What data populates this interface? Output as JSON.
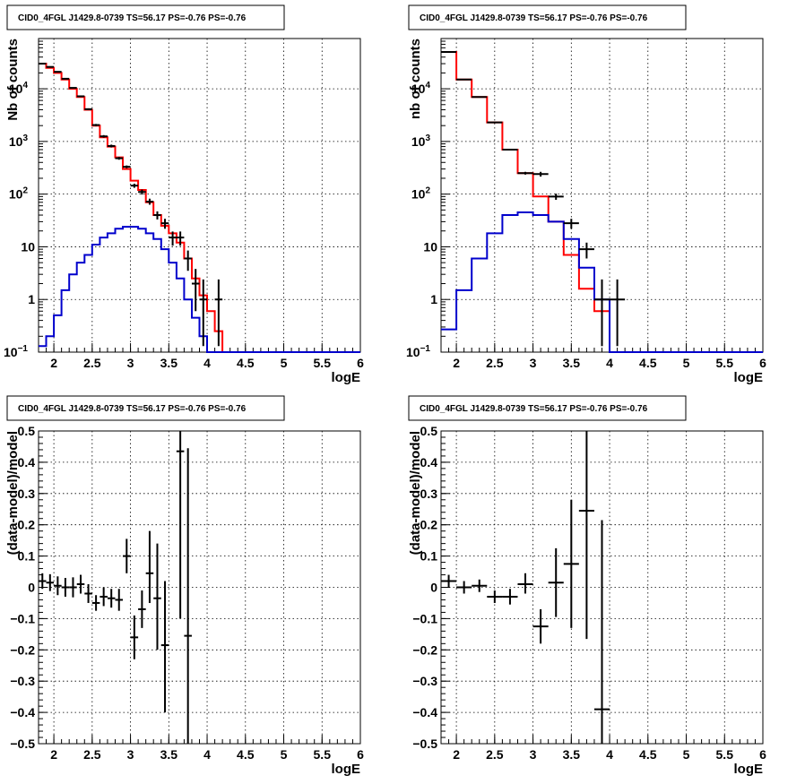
{
  "panel_title": "CID0_4FGL J1429.8-0739 TS=56.17 PS=-0.76 PS=-0.76",
  "chart_data": [
    {
      "type": "line",
      "panel": "top-left",
      "title": "CID0_4FGL J1429.8-0739 TS=56.17 PS=-0.76 PS=-0.76",
      "xlabel": "logE",
      "ylabel": "Nb of counts",
      "xlim": [
        1.8,
        6.0
      ],
      "ylim": [
        0.1,
        90000
      ],
      "yscale": "log",
      "grid": true,
      "x_ticks": [
        "2",
        "2.5",
        "3",
        "3.5",
        "4",
        "4.5",
        "5",
        "5.5",
        "6"
      ],
      "y_ticks": [
        "10^-1",
        "1",
        "10",
        "10^2",
        "10^3",
        "10^4"
      ],
      "series": [
        {
          "color": "#ff0000",
          "kind": "step",
          "bin_edges": [
            1.8,
            1.9,
            2.0,
            2.1,
            2.2,
            2.3,
            2.4,
            2.5,
            2.6,
            2.7,
            2.8,
            2.9,
            3.0,
            3.1,
            3.2,
            3.3,
            3.4,
            3.5,
            3.6,
            3.7,
            3.8,
            3.9,
            4.0,
            4.1,
            4.2,
            4.3,
            4.4,
            4.5,
            4.6,
            4.7,
            4.8,
            4.9,
            5.0,
            5.1,
            5.2,
            5.3,
            5.4,
            5.5,
            5.6,
            5.7,
            5.8,
            5.9,
            6.0
          ],
          "values": [
            30000,
            25000,
            20000,
            15000,
            10000,
            7000,
            4000,
            2000,
            1200,
            800,
            500,
            300,
            180,
            120,
            70,
            40,
            25,
            18,
            12,
            6,
            2.5,
            1.2,
            0.6,
            0.25,
            0.1,
            0.1,
            0.1,
            0.1,
            0.1,
            0.1,
            0.1,
            0.1,
            0.1,
            0.1,
            0.1,
            0.1,
            0.1,
            0.1,
            0.1,
            0.1,
            0.1,
            0.1
          ]
        },
        {
          "color": "#0000cc",
          "kind": "step",
          "bin_edges": [
            1.8,
            1.9,
            2.0,
            2.1,
            2.2,
            2.3,
            2.4,
            2.5,
            2.6,
            2.7,
            2.8,
            2.9,
            3.0,
            3.1,
            3.2,
            3.3,
            3.4,
            3.5,
            3.6,
            3.7,
            3.8,
            3.9,
            4.0,
            4.1,
            4.2,
            4.3,
            4.4,
            4.5,
            4.6,
            4.7,
            4.8,
            4.9,
            5.0,
            5.1,
            5.2,
            5.3,
            5.4,
            5.5,
            5.6,
            5.7,
            5.8,
            5.9,
            6.0
          ],
          "values": [
            0.13,
            0.2,
            0.5,
            1.5,
            3,
            5,
            7,
            11,
            15,
            18,
            22,
            24,
            24,
            22,
            18,
            14,
            9,
            5,
            2.5,
            1,
            0.45,
            0.2,
            0.1,
            0.1,
            0.1,
            0.1,
            0.1,
            0.1,
            0.1,
            0.1,
            0.1,
            0.1,
            0.1,
            0.1,
            0.1,
            0.1,
            0.1,
            0.1,
            0.1,
            0.1,
            0.1,
            0.1
          ]
        },
        {
          "color": "#000000",
          "kind": "points",
          "x": [
            1.85,
            1.95,
            2.05,
            2.15,
            2.25,
            2.35,
            2.45,
            2.55,
            2.65,
            2.75,
            2.85,
            2.95,
            3.05,
            3.15,
            3.25,
            3.35,
            3.45,
            3.55,
            3.65,
            3.75,
            3.85,
            3.95,
            4.15
          ],
          "y": [
            30000,
            26000,
            21000,
            15500,
            10400,
            7200,
            4100,
            2050,
            1250,
            820,
            480,
            330,
            145,
            110,
            72,
            40,
            28,
            15,
            15,
            6,
            2,
            1,
            1
          ],
          "xerr": 0.05,
          "ylow": [
            29800,
            25800,
            20800,
            15300,
            10200,
            7000,
            3950,
            1950,
            1180,
            770,
            450,
            310,
            132,
            98,
            63,
            33,
            22,
            10.5,
            10.5,
            3.5,
            0.6,
            0.13,
            0.13
          ],
          "yhigh": [
            30200,
            26200,
            21200,
            15700,
            10600,
            7400,
            4250,
            2150,
            1320,
            870,
            510,
            350,
            158,
            122,
            82,
            47,
            34,
            19.5,
            19.5,
            8.5,
            3.8,
            2.4,
            2.4
          ]
        }
      ]
    },
    {
      "type": "line",
      "panel": "top-right",
      "title": "CID0_4FGL J1429.8-0739 TS=56.17 PS=-0.76 PS=-0.76",
      "xlabel": "logE",
      "ylabel": "nb of counts",
      "xlim": [
        1.8,
        6.0
      ],
      "ylim": [
        0.1,
        90000
      ],
      "yscale": "log",
      "grid": true,
      "x_ticks": [
        "2",
        "2.5",
        "3",
        "3.5",
        "4",
        "4.5",
        "5",
        "5.5",
        "6"
      ],
      "y_ticks": [
        "10^-1",
        "1",
        "10",
        "10^2",
        "10^3",
        "10^4"
      ],
      "series": [
        {
          "color": "#ff0000",
          "kind": "step",
          "bin_edges": [
            1.8,
            2.0,
            2.2,
            2.4,
            2.6,
            2.8,
            3.0,
            3.2,
            3.4,
            3.6,
            3.8,
            4.0,
            4.2,
            4.4,
            4.6,
            4.8,
            5.0,
            5.2,
            5.4,
            5.6,
            5.8,
            6.0
          ],
          "values": [
            50000,
            15000,
            7000,
            2300,
            700,
            250,
            90,
            30,
            7,
            1.6,
            0.6,
            0.1,
            0.1,
            0.1,
            0.1,
            0.1,
            0.1,
            0.1,
            0.1,
            0.1,
            0.1
          ],
          "color_tail": "#0000cc"
        },
        {
          "color": "#0000cc",
          "kind": "step",
          "bin_edges": [
            1.8,
            2.0,
            2.2,
            2.4,
            2.6,
            2.8,
            3.0,
            3.2,
            3.4,
            3.6,
            3.8,
            4.0,
            4.2,
            4.4,
            4.6,
            4.8,
            5.0,
            5.2,
            5.4,
            5.6,
            5.8,
            6.0
          ],
          "values": [
            0.27,
            1.5,
            6,
            18,
            40,
            45,
            40,
            30,
            14,
            4,
            1,
            0.1,
            0.1,
            0.1,
            0.1,
            0.1,
            0.1,
            0.1,
            0.1,
            0.1,
            0.1
          ]
        },
        {
          "color": "#000000",
          "kind": "points",
          "x": [
            1.9,
            2.1,
            2.3,
            2.5,
            2.7,
            2.9,
            3.1,
            3.3,
            3.5,
            3.7,
            3.9,
            4.1
          ],
          "y": [
            50000,
            15000,
            7000,
            2300,
            700,
            250,
            240,
            90,
            28,
            9,
            1,
            1
          ],
          "xerr": 0.1,
          "ylow": [
            49800,
            14900,
            6950,
            2250,
            680,
            235,
            215,
            78,
            22,
            6,
            0.13,
            0.13
          ],
          "yhigh": [
            50200,
            15100,
            7050,
            2350,
            720,
            265,
            265,
            102,
            34,
            12,
            2.4,
            2.4
          ]
        }
      ]
    },
    {
      "type": "scatter",
      "panel": "bottom-left",
      "title": "CID0_4FGL J1429.8-0739 TS=56.17 PS=-0.76 PS=-0.76",
      "xlabel": "logE",
      "ylabel": "(data-model)/model",
      "xlim": [
        1.8,
        6.0
      ],
      "ylim": [
        -0.5,
        0.5
      ],
      "yscale": "linear",
      "grid": true,
      "x_ticks": [
        "2",
        "2.5",
        "3",
        "3.5",
        "4",
        "4.5",
        "5",
        "5.5",
        "6"
      ],
      "y_ticks": [
        "-0.5",
        "-0.4",
        "-0.3",
        "-0.2",
        "-0.1",
        "0",
        "0.1",
        "0.2",
        "0.3",
        "0.4",
        "0.5"
      ],
      "series": [
        {
          "color": "#000000",
          "kind": "points",
          "x": [
            1.85,
            1.95,
            2.05,
            2.15,
            2.25,
            2.35,
            2.45,
            2.55,
            2.65,
            2.75,
            2.85,
            2.95,
            3.05,
            3.15,
            3.25,
            3.35,
            3.45,
            3.65,
            3.75
          ],
          "y": [
            0.02,
            0.015,
            0.005,
            0.0,
            0.0,
            0.01,
            -0.02,
            -0.05,
            -0.03,
            -0.035,
            -0.04,
            0.1,
            -0.16,
            -0.07,
            0.045,
            -0.035,
            -0.185,
            0.435,
            -0.155
          ],
          "xerr": 0.05,
          "ylow": [
            -0.005,
            -0.012,
            -0.025,
            -0.03,
            -0.032,
            -0.02,
            -0.05,
            -0.075,
            -0.06,
            -0.065,
            -0.075,
            0.045,
            -0.23,
            -0.13,
            -0.05,
            -0.2,
            -0.4,
            -0.1,
            -0.5
          ],
          "yhigh": [
            0.045,
            0.042,
            0.035,
            0.03,
            0.032,
            0.04,
            0.01,
            -0.025,
            0.0,
            -0.005,
            -0.005,
            0.155,
            -0.09,
            -0.01,
            0.18,
            0.14,
            0.02,
            0.5,
            0.445
          ]
        }
      ]
    },
    {
      "type": "scatter",
      "panel": "bottom-right",
      "title": "CID0_4FGL J1429.8-0739 TS=56.17 PS=-0.76 PS=-0.76",
      "xlabel": "logE",
      "ylabel": "(data-model)/model",
      "xlim": [
        1.8,
        6.0
      ],
      "ylim": [
        -0.5,
        0.5
      ],
      "yscale": "linear",
      "grid": true,
      "x_ticks": [
        "2",
        "2.5",
        "3",
        "3.5",
        "4",
        "4.5",
        "5",
        "5.5",
        "6"
      ],
      "y_ticks": [
        "-0.5",
        "-0.4",
        "-0.3",
        "-0.2",
        "-0.1",
        "0",
        "0.1",
        "0.2",
        "0.3",
        "0.4",
        "0.5"
      ],
      "series": [
        {
          "color": "#000000",
          "kind": "points",
          "x": [
            1.9,
            2.1,
            2.3,
            2.5,
            2.7,
            2.9,
            3.1,
            3.3,
            3.5,
            3.7,
            3.9
          ],
          "y": [
            0.02,
            0.0,
            0.005,
            -0.03,
            -0.03,
            0.01,
            -0.125,
            0.015,
            0.075,
            0.245,
            -0.39
          ],
          "xerr": 0.1,
          "ylow": [
            0.0,
            -0.02,
            -0.015,
            -0.05,
            -0.055,
            -0.02,
            -0.18,
            -0.095,
            -0.13,
            -0.165,
            -0.5
          ],
          "yhigh": [
            0.04,
            0.02,
            0.025,
            -0.01,
            -0.005,
            0.045,
            -0.07,
            0.125,
            0.28,
            0.5,
            0.215
          ]
        }
      ]
    }
  ]
}
